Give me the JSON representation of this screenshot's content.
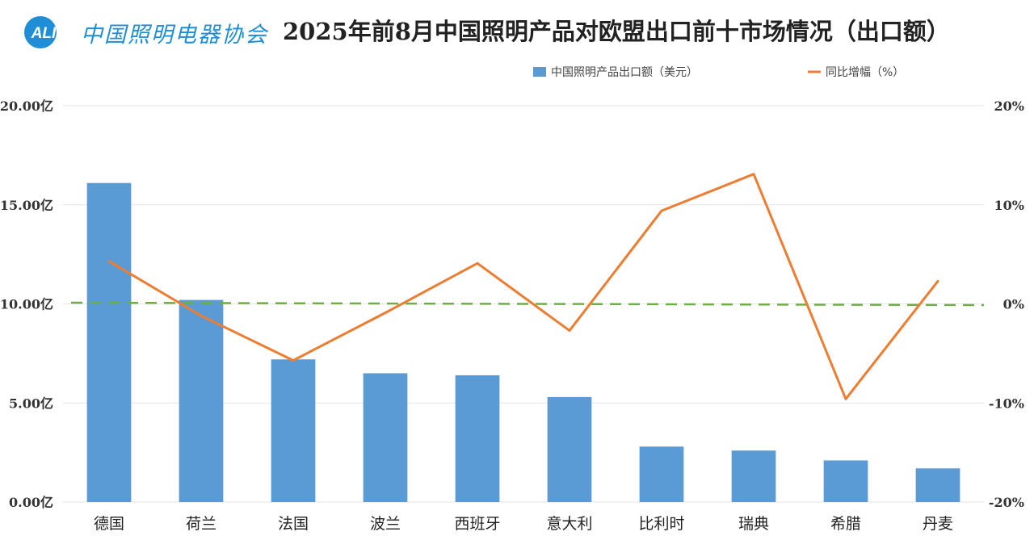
{
  "header": {
    "logo_badge": "ALI",
    "logo_text": "中国照明电器协会",
    "title": "2025年前8月中国照明产品对欧盟出口前十市场情况（出口额）"
  },
  "chart_data": {
    "type": "bar",
    "title": "2025年前8月中国照明产品对欧盟出口前十市场情况（出口额）",
    "categories": [
      "德国",
      "荷兰",
      "法国",
      "波兰",
      "西班牙",
      "意大利",
      "比利时",
      "瑞典",
      "希腊",
      "丹麦"
    ],
    "series": [
      {
        "name": "中国照明产品出口额（美元）",
        "type": "bar",
        "axis": "left",
        "color": "#5b9bd5",
        "values": [
          16.1,
          10.2,
          7.2,
          6.5,
          6.4,
          5.3,
          2.8,
          2.6,
          2.1,
          1.7
        ]
      },
      {
        "name": "同比增幅（%）",
        "type": "line",
        "axis": "right",
        "color": "#ed7d31",
        "values": [
          4.3,
          -1.2,
          -5.7,
          -0.9,
          4.1,
          -2.7,
          9.4,
          13.1,
          -9.6,
          2.3
        ]
      }
    ],
    "y_left": {
      "min": 0,
      "max": 20,
      "ticks": [
        0,
        5,
        10,
        15,
        20
      ],
      "tick_labels": [
        "0.00亿",
        "5.00亿",
        "10.00亿",
        "15.00亿",
        "20.00亿"
      ]
    },
    "y_right": {
      "min": -20,
      "max": 20,
      "ticks": [
        -20,
        -10,
        0,
        10,
        20
      ],
      "tick_labels": [
        "-20%",
        "-10%",
        "0%",
        "10%",
        "20%"
      ]
    },
    "reference_line": {
      "axis": "right",
      "value": 0,
      "style": "dashed",
      "color": "#70ad47"
    },
    "grid": true,
    "legend_position": "top-right"
  }
}
